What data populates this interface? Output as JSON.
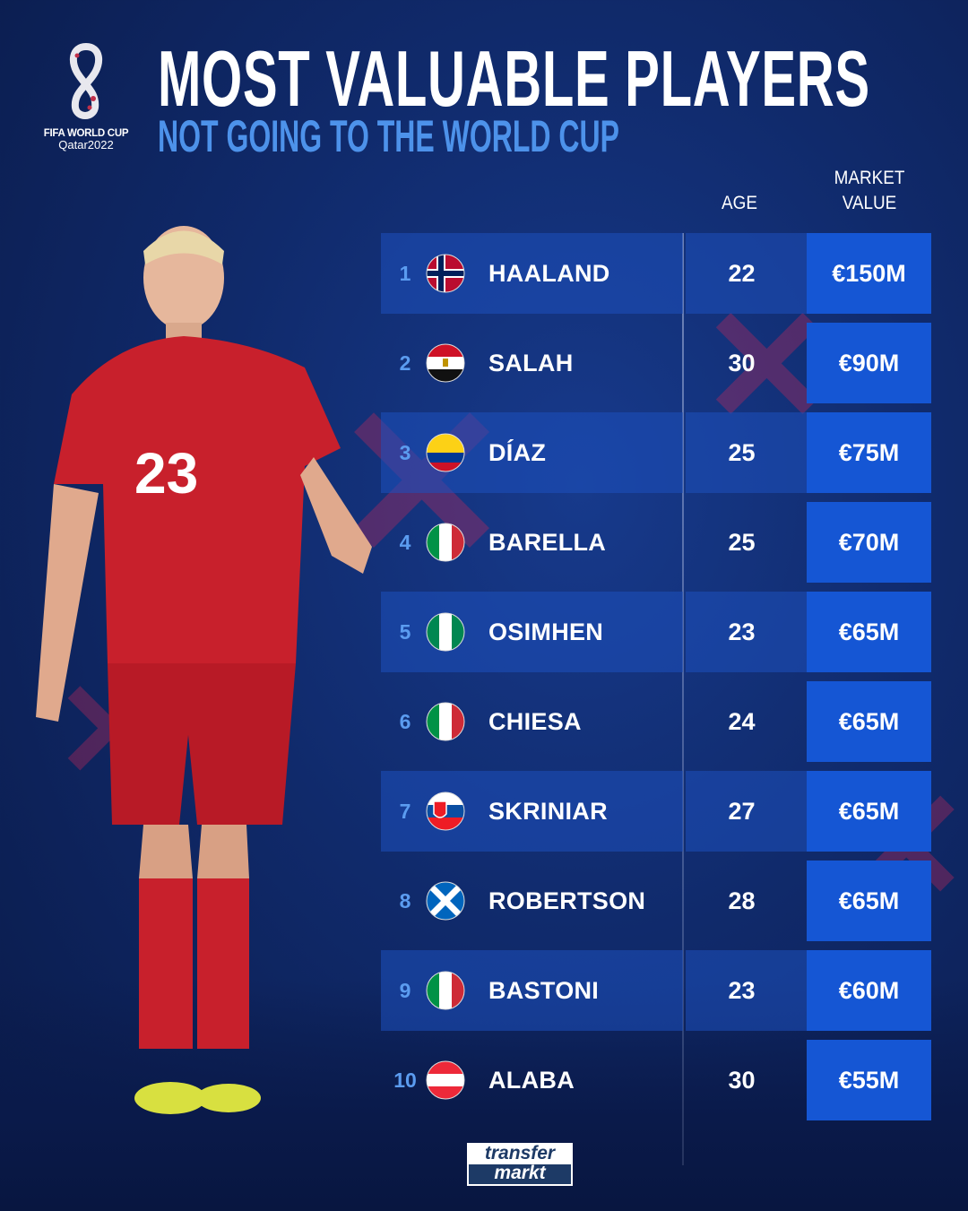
{
  "logo": {
    "line1": "FIFA WORLD CUP",
    "line2": "Qatar2022"
  },
  "title": "MOST VALUABLE PLAYERS",
  "subtitle": "NOT GOING TO THE WORLD CUP",
  "headers": {
    "age": "AGE",
    "market_value_line1": "MARKET",
    "market_value_line2": "VALUE"
  },
  "players": [
    {
      "rank": "1",
      "name": "HAALAND",
      "flag": "norway",
      "age": "22",
      "value": "€150M"
    },
    {
      "rank": "2",
      "name": "SALAH",
      "flag": "egypt",
      "age": "30",
      "value": "€90M"
    },
    {
      "rank": "3",
      "name": "DÍAZ",
      "flag": "colombia",
      "age": "25",
      "value": "€75M"
    },
    {
      "rank": "4",
      "name": "BARELLA",
      "flag": "italy",
      "age": "25",
      "value": "€70M"
    },
    {
      "rank": "5",
      "name": "OSIMHEN",
      "flag": "nigeria",
      "age": "23",
      "value": "€65M"
    },
    {
      "rank": "6",
      "name": "CHIESA",
      "flag": "italy",
      "age": "24",
      "value": "€65M"
    },
    {
      "rank": "7",
      "name": "SKRINIAR",
      "flag": "slovakia",
      "age": "27",
      "value": "€65M"
    },
    {
      "rank": "8",
      "name": "ROBERTSON",
      "flag": "scotland",
      "age": "28",
      "value": "€65M"
    },
    {
      "rank": "9",
      "name": "BASTONI",
      "flag": "italy",
      "age": "23",
      "value": "€60M"
    },
    {
      "rank": "10",
      "name": "ALABA",
      "flag": "austria",
      "age": "30",
      "value": "€55M"
    }
  ],
  "player_photo": {
    "shirt_number": "23"
  },
  "brand": {
    "line1": "transfer",
    "line2": "markt"
  },
  "colors": {
    "background": "#102a6b",
    "accent_blue": "#1556d4",
    "subtitle": "#4d92ea",
    "rank": "#5b9cf0",
    "shirt_red": "#c8202c"
  }
}
